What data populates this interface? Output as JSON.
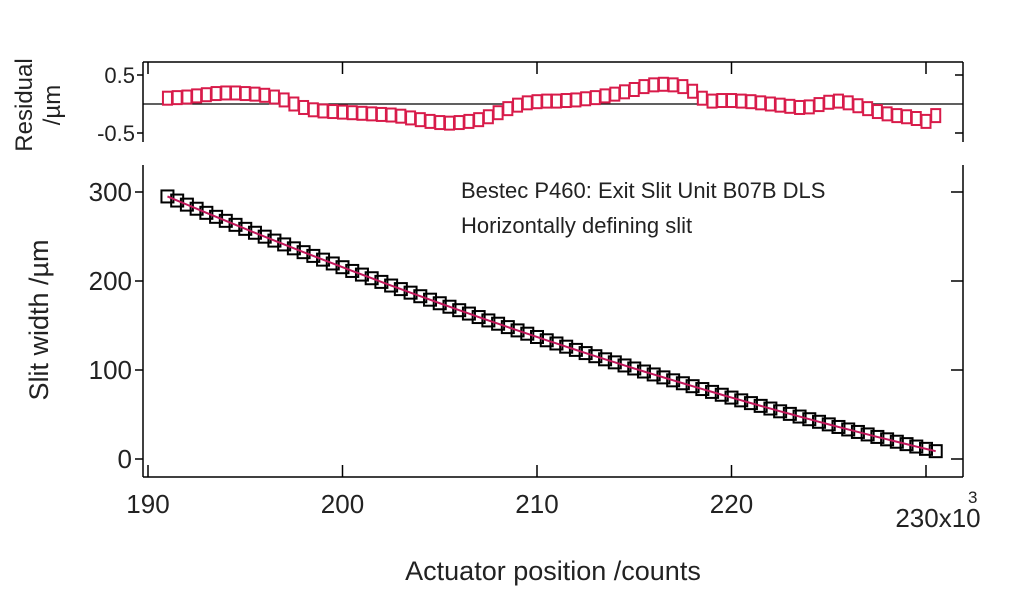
{
  "chart_data": [
    {
      "type": "scatter",
      "panel": "residual",
      "ylabel_line1": "Residual",
      "ylabel_line2": "/µm",
      "ylim": [
        -0.6,
        0.65
      ],
      "yticks": [
        0.5,
        -0.5
      ],
      "ytick_labels": [
        "0.5",
        "-0.5"
      ],
      "zero_line": 0,
      "marker_color": "#d81b4a",
      "x_start": 191,
      "x_step": 0.5,
      "values": [
        0.1,
        0.11,
        0.12,
        0.14,
        0.16,
        0.18,
        0.19,
        0.19,
        0.18,
        0.17,
        0.15,
        0.12,
        0.07,
        0.0,
        -0.06,
        -0.1,
        -0.12,
        -0.13,
        -0.14,
        -0.15,
        -0.16,
        -0.17,
        -0.18,
        -0.19,
        -0.21,
        -0.24,
        -0.27,
        -0.3,
        -0.32,
        -0.33,
        -0.32,
        -0.3,
        -0.27,
        -0.22,
        -0.15,
        -0.08,
        -0.02,
        0.02,
        0.04,
        0.05,
        0.05,
        0.06,
        0.07,
        0.09,
        0.11,
        0.14,
        0.17,
        0.21,
        0.25,
        0.3,
        0.33,
        0.34,
        0.33,
        0.3,
        0.22,
        0.1,
        0.05,
        0.06,
        0.06,
        0.05,
        0.04,
        0.02,
        0.0,
        -0.02,
        -0.04,
        -0.06,
        -0.05,
        -0.01,
        0.03,
        0.05,
        0.02,
        -0.03,
        -0.08,
        -0.13,
        -0.17,
        -0.2,
        -0.22,
        -0.25,
        -0.3,
        -0.2
      ]
    },
    {
      "type": "scatter",
      "panel": "main",
      "title_line1": "Bestec P460: Exit Slit Unit B07B DLS",
      "title_line2": "Horizontally defining slit",
      "xlabel": "Actuator position /counts",
      "ylabel": "Slit width /µm",
      "xlim": [
        189.5,
        232
      ],
      "ylim": [
        -20,
        320
      ],
      "xticks": [
        190,
        200,
        210,
        220,
        230
      ],
      "xtick_labels": [
        "190",
        "200",
        "210",
        "220",
        "230x10"
      ],
      "x_exponent": "3",
      "yticks": [
        0,
        100,
        200,
        300
      ],
      "ytick_labels": [
        "0",
        "100",
        "200",
        "300"
      ],
      "marker_color": "#000000",
      "fit_color": "#c2185b",
      "x_start": 191,
      "x_step": 0.5,
      "values": [
        295,
        290.4,
        285.8,
        281.2,
        276.6,
        272.1,
        267.6,
        263.1,
        258.6,
        254.2,
        249.8,
        245.4,
        241.1,
        236.7,
        232.4,
        228.2,
        224.0,
        219.7,
        215.5,
        211.3,
        207.2,
        203.1,
        199.0,
        194.9,
        190.9,
        186.9,
        182.9,
        179.0,
        175.0,
        171.1,
        167.2,
        163.4,
        159.5,
        155.7,
        152.0,
        148.2,
        144.5,
        140.8,
        137.1,
        133.4,
        129.8,
        126.2,
        122.6,
        119.0,
        115.5,
        112.0,
        108.6,
        105.1,
        101.7,
        98.3,
        95.0,
        91.7,
        88.4,
        85.1,
        81.8,
        78.6,
        75.4,
        72.2,
        69.0,
        65.9,
        62.8,
        59.7,
        56.7,
        53.6,
        50.7,
        47.7,
        44.7,
        41.8,
        38.9,
        36.0,
        33.2,
        30.4,
        27.6,
        24.8,
        22.1,
        19.4,
        16.7,
        14.0,
        11.4,
        8.8
      ]
    }
  ]
}
